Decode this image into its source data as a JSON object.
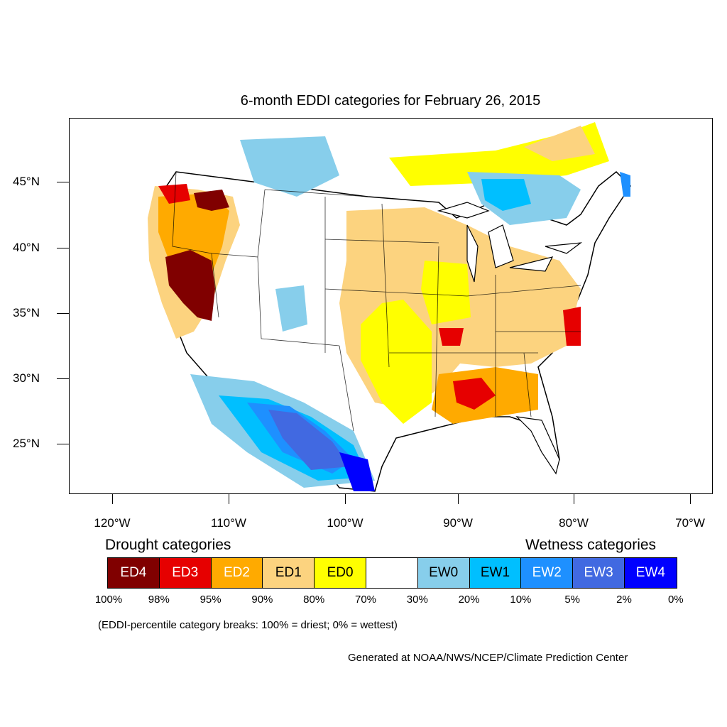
{
  "title": "6-month EDDI categories for February 26, 2015",
  "lat_labels": [
    "45°N",
    "40°N",
    "35°N",
    "30°N",
    "25°N"
  ],
  "lon_labels": [
    "120°W",
    "110°W",
    "100°W",
    "90°W",
    "80°W",
    "70°W"
  ],
  "legend": {
    "drought_heading": "Drought categories",
    "wetness_heading": "Wetness categories",
    "categories": [
      {
        "label": "ED4",
        "color": "#800000",
        "text_color": "#ffffff"
      },
      {
        "label": "ED3",
        "color": "#e60000",
        "text_color": "#ffffff"
      },
      {
        "label": "ED2",
        "color": "#ffaa00",
        "text_color": "#ffffff"
      },
      {
        "label": "ED1",
        "color": "#fcd37f",
        "text_color": "#000000"
      },
      {
        "label": "ED0",
        "color": "#ffff00",
        "text_color": "#000000"
      },
      {
        "label": "",
        "color": "#ffffff",
        "text_color": "#000000"
      },
      {
        "label": "EW0",
        "color": "#87ceeb",
        "text_color": "#000000"
      },
      {
        "label": "EW1",
        "color": "#00bfff",
        "text_color": "#000000"
      },
      {
        "label": "EW2",
        "color": "#1e90ff",
        "text_color": "#ffffff"
      },
      {
        "label": "EW3",
        "color": "#4169e1",
        "text_color": "#ffffff"
      },
      {
        "label": "EW4",
        "color": "#0000ff",
        "text_color": "#ffffff"
      }
    ],
    "percentiles": [
      "100%",
      "98%",
      "95%",
      "90%",
      "80%",
      "70%",
      "30%",
      "20%",
      "10%",
      "5%",
      "2%",
      "0%"
    ]
  },
  "note": "(EDDI-percentile category breaks: 100% = driest; 0% = wettest)",
  "credit": "Generated at NOAA/NWS/NCEP/Climate Prediction Center"
}
